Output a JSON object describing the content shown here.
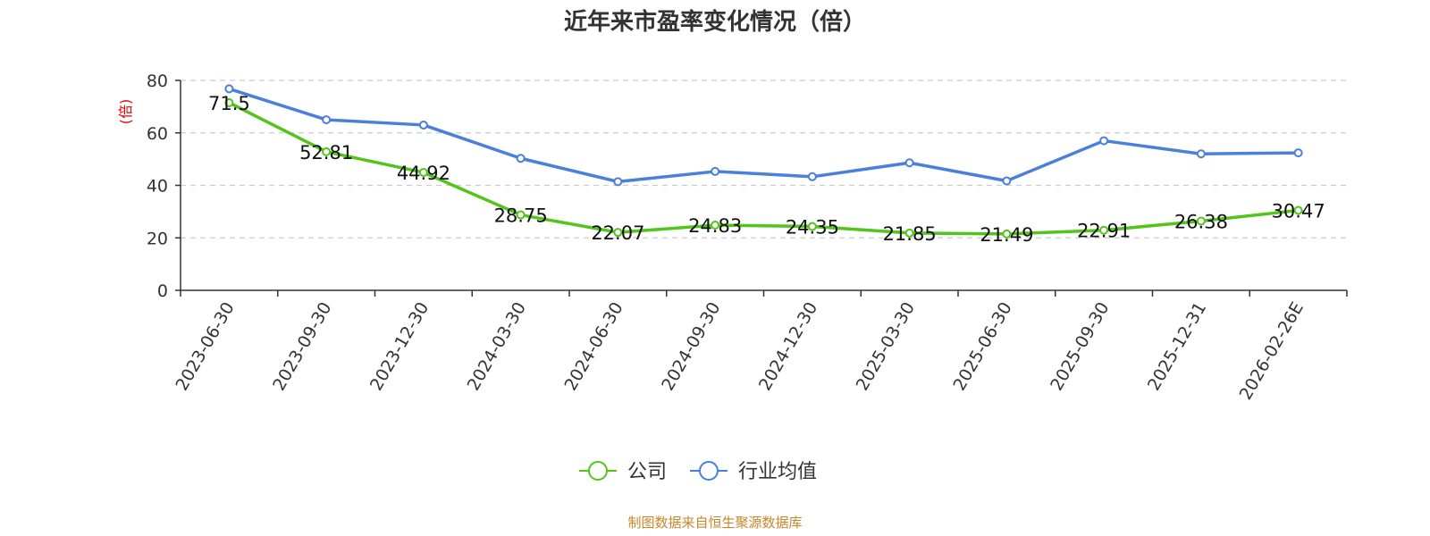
{
  "chart_data": {
    "type": "line",
    "title": "近年来市盈率变化情况（倍）",
    "ylabel": "(倍)",
    "ylim": [
      0,
      80
    ],
    "yticks": [
      0,
      20,
      40,
      60,
      80
    ],
    "grid": true,
    "legend_position": "bottom",
    "categories": [
      "2023-06-30",
      "2023-09-30",
      "2023-12-30",
      "2024-03-30",
      "2024-06-30",
      "2024-09-30",
      "2024-12-30",
      "2025-03-30",
      "2025-06-30",
      "2025-09-30",
      "2025-12-31",
      "2026-02-26E"
    ],
    "series": [
      {
        "name": "公司",
        "color": "#52c41a",
        "values": [
          71.5,
          52.81,
          44.92,
          28.75,
          22.07,
          24.83,
          24.35,
          21.85,
          21.49,
          22.91,
          26.38,
          30.47
        ],
        "labels": [
          "71.5",
          "52.81",
          "44.92",
          "28.75",
          "22.07",
          "24.83",
          "24.35",
          "21.85",
          "21.49",
          "22.91",
          "26.38",
          "30.47"
        ]
      },
      {
        "name": "行业均值",
        "color": "#4a7fdc",
        "values": [
          76.8,
          65.0,
          63.0,
          50.3,
          41.4,
          45.3,
          43.3,
          48.6,
          41.7,
          57.0,
          52.0,
          52.4
        ]
      }
    ],
    "source": "制图数据来自恒生聚源数据库"
  },
  "colors": {
    "ylabel": "#e8000b",
    "source": "#c8862a",
    "axis": "#333333",
    "grid": "#cccccc"
  }
}
